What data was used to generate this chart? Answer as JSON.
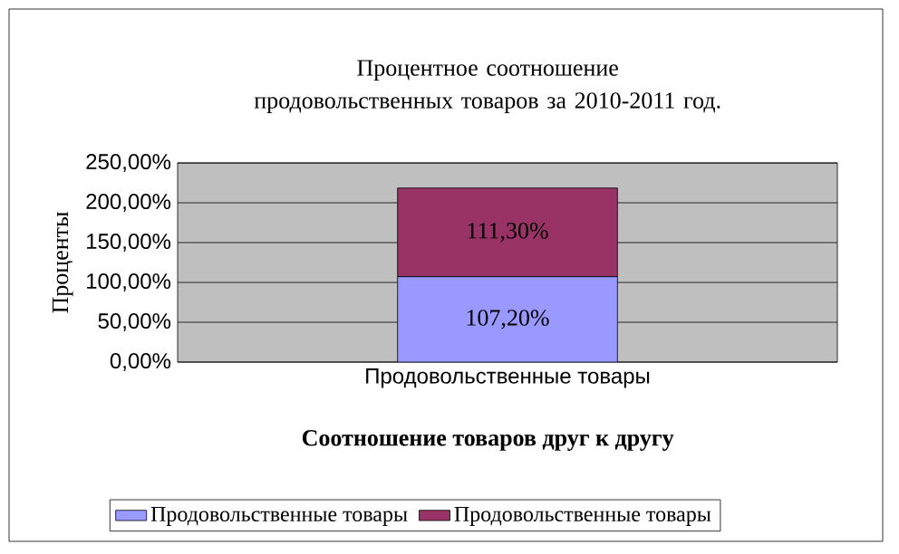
{
  "chart_data": {
    "type": "bar",
    "stacked": true,
    "title": "Процентное соотношение продовольственных товаров за 2010-2011 год.",
    "xlabel": "Соотношение товаров друг к другу",
    "ylabel": "Проценты",
    "categories": [
      "Продовольственные товары"
    ],
    "series": [
      {
        "name": "Продовольственные товары",
        "color": "#9999ff",
        "values": [
          107.2
        ],
        "value_labels": [
          "107,20%"
        ]
      },
      {
        "name": "Продовольственные товары",
        "color": "#993366",
        "values": [
          111.3
        ],
        "value_labels": [
          "111,30%"
        ]
      }
    ],
    "ylim": [
      0,
      250
    ],
    "yticks": [
      {
        "value": 0,
        "label": "0,00%"
      },
      {
        "value": 50,
        "label": "50,00%"
      },
      {
        "value": 100,
        "label": "100,00%"
      },
      {
        "value": 150,
        "label": "150,00%"
      },
      {
        "value": 200,
        "label": "200,00%"
      },
      {
        "value": 250,
        "label": "250,00%"
      }
    ],
    "grid": "y",
    "legend": "bottom"
  }
}
